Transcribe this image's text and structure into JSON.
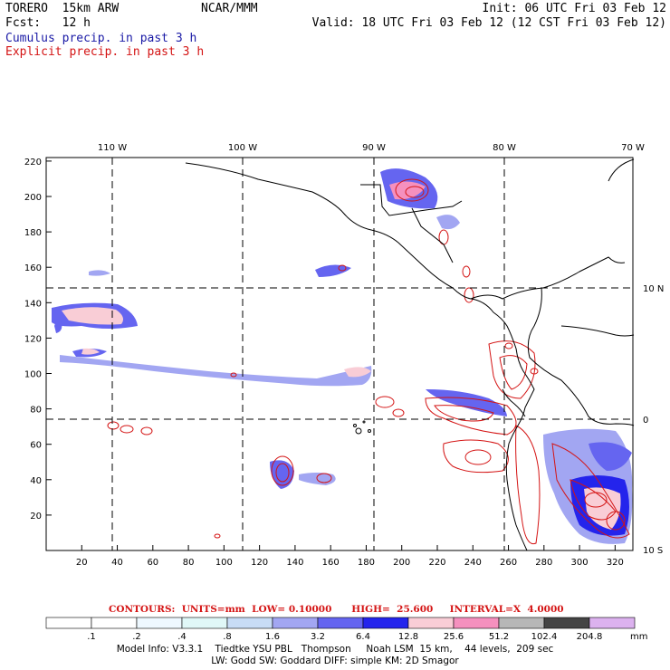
{
  "header": {
    "model": "TORERO  15km ARW",
    "org": "NCAR/MMM",
    "init": "Init: 06 UTC Fri 03 Feb 12",
    "fcst": "Fcst:   12 h",
    "valid": "Valid: 18 UTC Fri 03 Feb 12 (12 CST Fri 03 Feb 12)",
    "cumulus": "Cumulus precip. in past 3 h",
    "explicit": "Explicit precip. in past 3 h"
  },
  "axes": {
    "x_ticks": [
      "20",
      "40",
      "60",
      "80",
      "100",
      "120",
      "140",
      "160",
      "180",
      "200",
      "220",
      "240",
      "260",
      "280",
      "300",
      "320"
    ],
    "y_ticks": [
      "20",
      "40",
      "60",
      "80",
      "100",
      "120",
      "140",
      "160",
      "180",
      "200",
      "220"
    ],
    "lon_labels": [
      "110 W",
      "100 W",
      "90 W",
      "80 W",
      "70 W"
    ],
    "lat_labels": [
      "10 N",
      "0",
      "10 S"
    ]
  },
  "legend": {
    "contours_text": "CONTOURS:  UNITS=mm  LOW= 0.10000      HIGH=  25.600     INTERVAL=X  4.0000",
    "labels": [
      ".1",
      ".2",
      ".4",
      ".8",
      "1.6",
      "3.2",
      "6.4",
      "12.8",
      "25.6",
      "51.2",
      "102.4",
      "204.8"
    ],
    "unit": "mm",
    "colors": [
      "#ffffff",
      "#ffffff",
      "#eef8ff",
      "#e0f7f7",
      "#c8dcf6",
      "#a2a6f2",
      "#6565f0",
      "#2424ec",
      "#f9cdd6",
      "#f590be",
      "#b7b7b7",
      "#444444",
      "#dcb2ef"
    ]
  },
  "footer": {
    "line1": "Model Info: V3.3.1    Tiedtke YSU PBL   Thompson     Noah LSM  15 km,    44 levels,  209 sec",
    "line2": "LW: Godd SW: Goddard DIFF: simple KM: 2D Smagor"
  }
}
